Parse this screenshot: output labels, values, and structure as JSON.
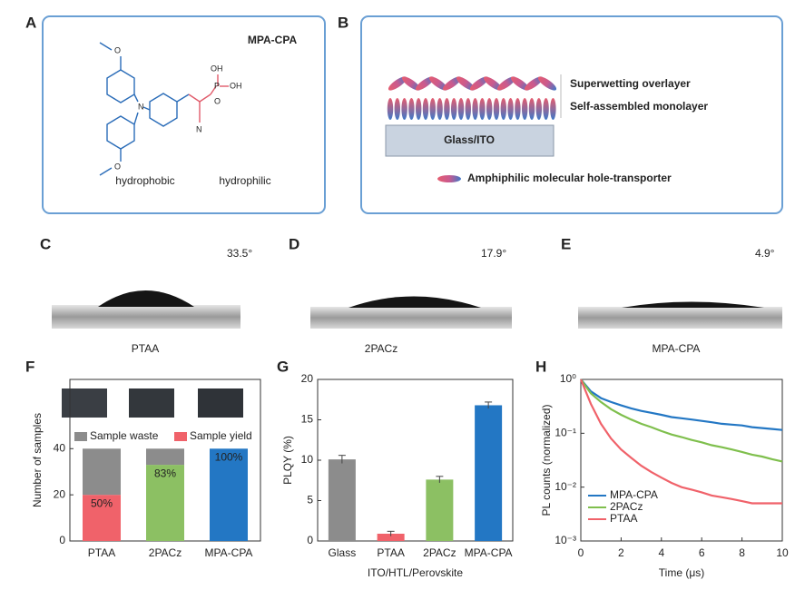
{
  "panels": {
    "a": {
      "letter": "A",
      "title": "MPA-CPA",
      "atoms": [
        "O",
        "N",
        "O",
        "OH",
        "P",
        "O",
        "OH",
        "N"
      ],
      "hydrophobic": "hydrophobic",
      "hydrophilic": "hydrophilic"
    },
    "b": {
      "letter": "B",
      "overlayer": "Superwetting overlayer",
      "monolayer": "Self-assembled monolayer",
      "substrate": "Glass/ITO",
      "legend": "Amphiphilic molecular hole-transporter"
    },
    "c": {
      "letter": "C",
      "angle": "33.5°",
      "name": "PTAA"
    },
    "d": {
      "letter": "D",
      "angle": "17.9°",
      "name": "2PACz"
    },
    "e": {
      "letter": "E",
      "angle": "4.9°",
      "name": "MPA-CPA"
    },
    "f": {
      "letter": "F"
    },
    "g": {
      "letter": "G"
    },
    "h": {
      "letter": "H"
    }
  },
  "chart_data": [
    {
      "type": "stacked_bar",
      "ylabel": "Number of samples",
      "categories": [
        "PTAA",
        "2PACz",
        "MPA-CPA"
      ],
      "series": [
        {
          "name": "Sample waste",
          "color": "#8c8c8c",
          "values": [
            20,
            7,
            0
          ]
        },
        {
          "name": "Sample yield",
          "colors": [
            "#f0626a",
            "#8cc063",
            "#2377c4"
          ],
          "color": "#f0626a",
          "values": [
            20,
            33,
            40
          ]
        }
      ],
      "annotations": [
        "50%",
        "83%",
        "100%"
      ],
      "ylim": [
        0,
        70
      ],
      "yticks": [
        0,
        20,
        40
      ]
    },
    {
      "type": "bar",
      "ylabel": "PLQY (%)",
      "xlabel": "ITO/HTL/Perovskite",
      "categories": [
        "Glass",
        "PTAA",
        "2PACz",
        "MPA-CPA"
      ],
      "values": [
        10.1,
        0.9,
        7.6,
        16.8
      ],
      "errors": [
        0.5,
        0.3,
        0.4,
        0.4
      ],
      "colors": [
        "#8c8c8c",
        "#f0626a",
        "#8cc063",
        "#2377c4"
      ],
      "ylim": [
        0,
        20
      ],
      "yticks": [
        0,
        5,
        10,
        15,
        20
      ]
    },
    {
      "type": "line",
      "xlabel": "Time (μs)",
      "ylabel": "PL counts (normalized)",
      "log_y": true,
      "legend": "lower-left",
      "x": [
        0,
        0.5,
        1,
        1.5,
        2,
        2.5,
        3,
        3.5,
        4,
        4.5,
        5,
        5.5,
        6,
        6.5,
        7,
        7.5,
        8,
        8.5,
        9,
        9.5,
        10
      ],
      "series": [
        {
          "name": "MPA-CPA",
          "color": "#2377c4",
          "values": [
            1,
            0.6,
            0.45,
            0.38,
            0.33,
            0.29,
            0.26,
            0.24,
            0.22,
            0.2,
            0.19,
            0.18,
            0.17,
            0.16,
            0.15,
            0.145,
            0.14,
            0.13,
            0.125,
            0.12,
            0.115
          ]
        },
        {
          "name": "2PACz",
          "color": "#7fbf4d",
          "values": [
            1,
            0.55,
            0.38,
            0.28,
            0.22,
            0.18,
            0.15,
            0.13,
            0.11,
            0.095,
            0.085,
            0.075,
            0.068,
            0.06,
            0.055,
            0.05,
            0.045,
            0.04,
            0.037,
            0.033,
            0.03
          ]
        },
        {
          "name": "PTAA",
          "color": "#f0626a",
          "values": [
            1,
            0.35,
            0.15,
            0.08,
            0.05,
            0.035,
            0.025,
            0.019,
            0.015,
            0.012,
            0.01,
            0.009,
            0.008,
            0.007,
            0.0065,
            0.006,
            0.0055,
            0.005,
            0.005,
            0.005,
            0.005
          ]
        }
      ],
      "xlim": [
        0,
        10
      ],
      "xticks": [
        0,
        2,
        4,
        6,
        8,
        10
      ],
      "ylim": [
        0.001,
        1
      ],
      "yticks": [
        {
          "value": 0.001,
          "label": "10⁻³"
        },
        {
          "value": 0.01,
          "label": "10⁻²"
        },
        {
          "value": 0.1,
          "label": "10⁻¹"
        },
        {
          "value": 1,
          "label": "10⁰"
        }
      ]
    }
  ]
}
